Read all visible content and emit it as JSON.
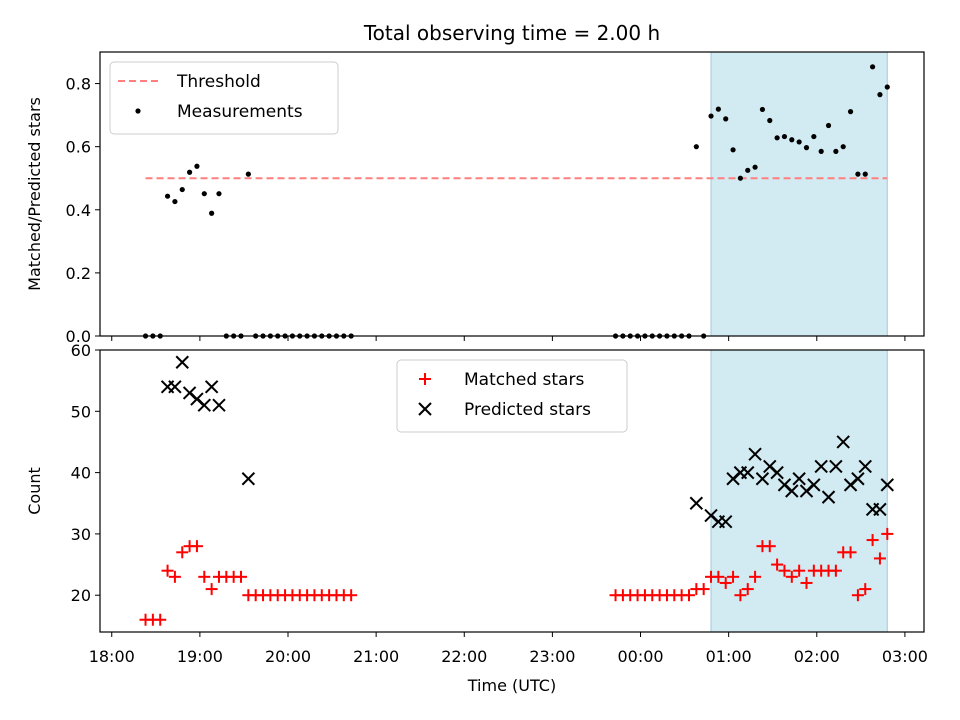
{
  "chart_data": {
    "title": "Total observing time = 2.00 h",
    "xlabel": "Time (UTC)",
    "x_ticks": [
      "18:00",
      "19:00",
      "20:00",
      "21:00",
      "22:00",
      "23:00",
      "00:00",
      "01:00",
      "02:00",
      "03:00"
    ],
    "x_range_minutes": [
      1072,
      1633
    ],
    "shaded_span": {
      "start": "00:48",
      "end": "02:48",
      "color": "#add8e6"
    },
    "panels": [
      {
        "type": "scatter",
        "ylabel": "Matched/Predicted stars",
        "ylim": [
          0,
          0.9
        ],
        "yticks": [
          "0.0",
          "0.2",
          "0.4",
          "0.6",
          "0.8"
        ],
        "legend_position": "upper-left",
        "threshold": {
          "name": "Threshold",
          "value": 0.5,
          "color": "#ff7f7f"
        },
        "series": [
          {
            "name": "Measurements",
            "color": "#000000",
            "points": [
              [
                "18:23",
                0
              ],
              [
                "18:28",
                0
              ],
              [
                "18:33",
                0
              ],
              [
                "18:38",
                0.443
              ],
              [
                "18:43",
                0.426
              ],
              [
                "18:48",
                0.464
              ],
              [
                "18:53",
                0.519
              ],
              [
                "18:58",
                0.538
              ],
              [
                "19:03",
                0.451
              ],
              [
                "19:08",
                0.389
              ],
              [
                "19:13",
                0.451
              ],
              [
                "19:18",
                0
              ],
              [
                "19:23",
                0
              ],
              [
                "19:28",
                0
              ],
              [
                "19:33",
                0.513
              ],
              [
                "19:38",
                0
              ],
              [
                "19:43",
                0
              ],
              [
                "19:48",
                0
              ],
              [
                "19:53",
                0
              ],
              [
                "19:58",
                0
              ],
              [
                "20:03",
                0
              ],
              [
                "20:08",
                0
              ],
              [
                "20:13",
                0
              ],
              [
                "20:18",
                0
              ],
              [
                "20:23",
                0
              ],
              [
                "20:28",
                0
              ],
              [
                "20:33",
                0
              ],
              [
                "20:38",
                0
              ],
              [
                "20:43",
                0
              ],
              [
                "23:43",
                0
              ],
              [
                "23:48",
                0
              ],
              [
                "23:53",
                0
              ],
              [
                "23:58",
                0
              ],
              [
                "00:03",
                0
              ],
              [
                "00:08",
                0
              ],
              [
                "00:13",
                0
              ],
              [
                "00:18",
                0
              ],
              [
                "00:23",
                0
              ],
              [
                "00:28",
                0
              ],
              [
                "00:33",
                0
              ],
              [
                "00:38",
                0.6
              ],
              [
                "00:43",
                0
              ],
              [
                "00:48",
                0.697
              ],
              [
                "00:53",
                0.719
              ],
              [
                "00:58",
                0.688
              ],
              [
                "01:03",
                0.59
              ],
              [
                "01:08",
                0.5
              ],
              [
                "01:13",
                0.525
              ],
              [
                "01:18",
                0.535
              ],
              [
                "01:23",
                0.718
              ],
              [
                "01:28",
                0.683
              ],
              [
                "01:33",
                0.628
              ],
              [
                "01:38",
                0.632
              ],
              [
                "01:43",
                0.622
              ],
              [
                "01:48",
                0.615
              ],
              [
                "01:53",
                0.597
              ],
              [
                "01:58",
                0.632
              ],
              [
                "02:03",
                0.585
              ],
              [
                "02:08",
                0.667
              ],
              [
                "02:13",
                0.585
              ],
              [
                "02:18",
                0.6
              ],
              [
                "02:23",
                0.711
              ],
              [
                "02:28",
                0.513
              ],
              [
                "02:33",
                0.513
              ],
              [
                "02:38",
                0.853
              ],
              [
                "02:43",
                0.765
              ],
              [
                "02:48",
                0.789
              ]
            ]
          }
        ]
      },
      {
        "type": "scatter",
        "ylabel": "Count",
        "ylim": [
          14,
          60
        ],
        "yticks": [
          "20",
          "30",
          "40",
          "50",
          "60"
        ],
        "legend_position": "upper-center",
        "series": [
          {
            "name": "Matched stars",
            "color": "#ff0000",
            "marker": "+",
            "points": [
              [
                "18:23",
                16
              ],
              [
                "18:28",
                16
              ],
              [
                "18:33",
                16
              ],
              [
                "18:38",
                24
              ],
              [
                "18:43",
                23
              ],
              [
                "18:48",
                27
              ],
              [
                "18:53",
                28
              ],
              [
                "18:58",
                28
              ],
              [
                "19:03",
                23
              ],
              [
                "19:08",
                21
              ],
              [
                "19:13",
                23
              ],
              [
                "19:18",
                23
              ],
              [
                "19:23",
                23
              ],
              [
                "19:28",
                23
              ],
              [
                "19:33",
                20
              ],
              [
                "19:38",
                20
              ],
              [
                "19:43",
                20
              ],
              [
                "19:48",
                20
              ],
              [
                "19:53",
                20
              ],
              [
                "19:58",
                20
              ],
              [
                "20:03",
                20
              ],
              [
                "20:08",
                20
              ],
              [
                "20:13",
                20
              ],
              [
                "20:18",
                20
              ],
              [
                "20:23",
                20
              ],
              [
                "20:28",
                20
              ],
              [
                "20:33",
                20
              ],
              [
                "20:38",
                20
              ],
              [
                "20:43",
                20
              ],
              [
                "23:43",
                20
              ],
              [
                "23:48",
                20
              ],
              [
                "23:53",
                20
              ],
              [
                "23:58",
                20
              ],
              [
                "00:03",
                20
              ],
              [
                "00:08",
                20
              ],
              [
                "00:13",
                20
              ],
              [
                "00:18",
                20
              ],
              [
                "00:23",
                20
              ],
              [
                "00:28",
                20
              ],
              [
                "00:33",
                20
              ],
              [
                "00:38",
                21
              ],
              [
                "00:43",
                21
              ],
              [
                "00:48",
                23
              ],
              [
                "00:53",
                23
              ],
              [
                "00:58",
                22
              ],
              [
                "01:03",
                23
              ],
              [
                "01:08",
                20
              ],
              [
                "01:13",
                21
              ],
              [
                "01:18",
                23
              ],
              [
                "01:23",
                28
              ],
              [
                "01:28",
                28
              ],
              [
                "01:33",
                25
              ],
              [
                "01:38",
                24
              ],
              [
                "01:43",
                23
              ],
              [
                "01:48",
                24
              ],
              [
                "01:53",
                22
              ],
              [
                "01:58",
                24
              ],
              [
                "02:03",
                24
              ],
              [
                "02:08",
                24
              ],
              [
                "02:13",
                24
              ],
              [
                "02:18",
                27
              ],
              [
                "02:23",
                27
              ],
              [
                "02:28",
                20
              ],
              [
                "02:33",
                21
              ],
              [
                "02:38",
                29
              ],
              [
                "02:43",
                26
              ],
              [
                "02:48",
                30
              ]
            ]
          },
          {
            "name": "Predicted stars",
            "color": "#000000",
            "marker": "x",
            "points": [
              [
                "18:38",
                54
              ],
              [
                "18:43",
                54
              ],
              [
                "18:48",
                58
              ],
              [
                "18:53",
                53
              ],
              [
                "18:58",
                52
              ],
              [
                "19:03",
                51
              ],
              [
                "19:08",
                54
              ],
              [
                "19:13",
                51
              ],
              [
                "19:33",
                39
              ],
              [
                "00:38",
                35
              ],
              [
                "00:48",
                33
              ],
              [
                "00:53",
                32
              ],
              [
                "00:58",
                32
              ],
              [
                "01:03",
                39
              ],
              [
                "01:08",
                40
              ],
              [
                "01:13",
                40
              ],
              [
                "01:18",
                43
              ],
              [
                "01:23",
                39
              ],
              [
                "01:28",
                41
              ],
              [
                "01:33",
                40
              ],
              [
                "01:38",
                38
              ],
              [
                "01:43",
                37
              ],
              [
                "01:48",
                39
              ],
              [
                "01:53",
                37
              ],
              [
                "01:58",
                38
              ],
              [
                "02:03",
                41
              ],
              [
                "02:08",
                36
              ],
              [
                "02:13",
                41
              ],
              [
                "02:18",
                45
              ],
              [
                "02:23",
                38
              ],
              [
                "02:28",
                39
              ],
              [
                "02:33",
                41
              ],
              [
                "02:38",
                34
              ],
              [
                "02:43",
                34
              ],
              [
                "02:48",
                38
              ]
            ]
          }
        ]
      }
    ]
  }
}
